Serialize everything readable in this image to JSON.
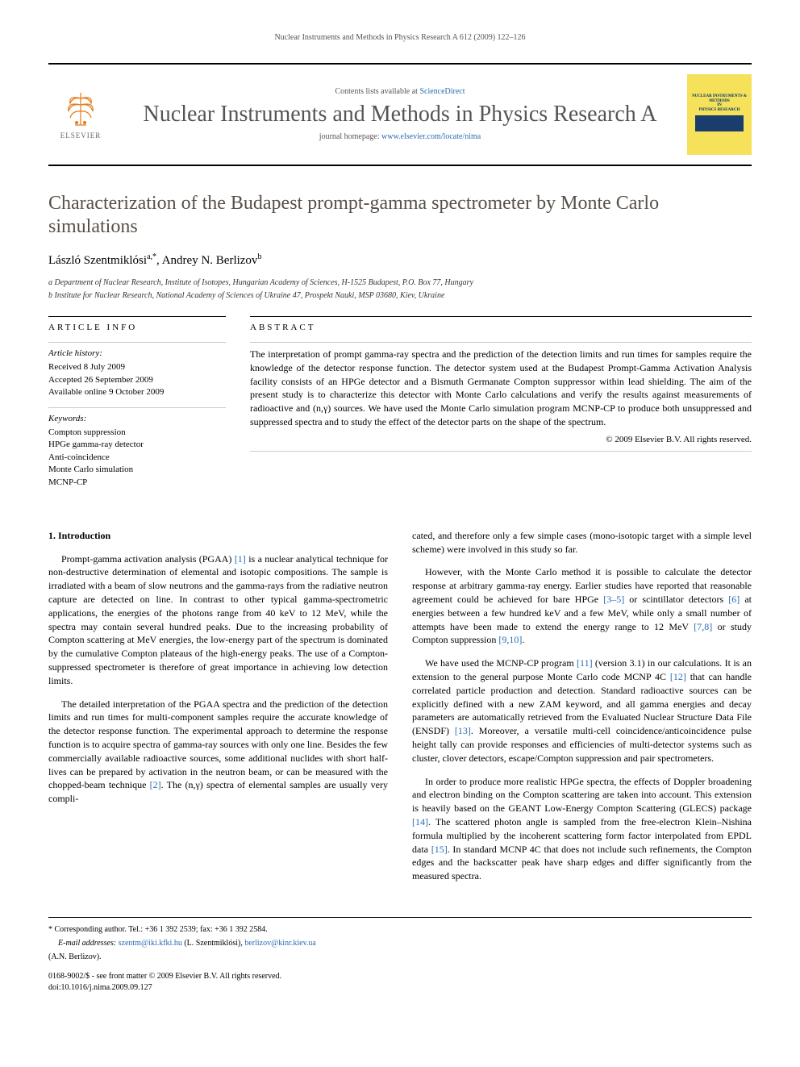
{
  "running_head": "Nuclear Instruments and Methods in Physics Research A 612 (2009) 122–126",
  "masthead": {
    "elsevier_label": "ELSEVIER",
    "contents_line_prefix": "Contents lists available at ",
    "contents_line_link": "ScienceDirect",
    "journal_name": "Nuclear Instruments and Methods in Physics Research A",
    "homepage_prefix": "journal homepage: ",
    "homepage_link": "www.elsevier.com/locate/nima",
    "cover_text1": "NUCLEAR INSTRUMENTS & METHODS",
    "cover_text2": "IN",
    "cover_text3": "PHYSICS RESEARCH"
  },
  "article": {
    "title": "Characterization of the Budapest prompt-gamma spectrometer by Monte Carlo simulations",
    "authors_html": "László Szentmiklósi",
    "author1_sup": "a,*",
    "author_sep": ", ",
    "author2": "Andrey N. Berlizov",
    "author2_sup": "b",
    "affil_a": "a Department of Nuclear Research, Institute of Isotopes, Hungarian Academy of Sciences, H-1525 Budapest, P.O. Box 77, Hungary",
    "affil_b": "b Institute for Nuclear Research, National Academy of Sciences of Ukraine 47, Prospekt Nauki, MSP 03680, Kiev, Ukraine"
  },
  "info": {
    "header": "ARTICLE INFO",
    "history_title": "Article history:",
    "received": "Received 8 July 2009",
    "accepted": "Accepted 26 September 2009",
    "online": "Available online 9 October 2009",
    "keywords_title": "Keywords:",
    "kw1": "Compton suppression",
    "kw2": "HPGe gamma-ray detector",
    "kw3": "Anti-coincidence",
    "kw4": "Monte Carlo simulation",
    "kw5": "MCNP-CP"
  },
  "abstract": {
    "header": "ABSTRACT",
    "text": "The interpretation of prompt gamma-ray spectra and the prediction of the detection limits and run times for samples require the knowledge of the detector response function. The detector system used at the Budapest Prompt-Gamma Activation Analysis facility consists of an HPGe detector and a Bismuth Germanate Compton suppressor within lead shielding. The aim of the present study is to characterize this detector with Monte Carlo calculations and verify the results against measurements of radioactive and (n,γ) sources. We have used the Monte Carlo simulation program MCNP-CP to produce both unsuppressed and suppressed spectra and to study the effect of the detector parts on the shape of the spectrum.",
    "copyright": "© 2009 Elsevier B.V. All rights reserved."
  },
  "body": {
    "section1_heading": "1. Introduction",
    "col1_p1": "Prompt-gamma activation analysis (PGAA) [1] is a nuclear analytical technique for non-destructive determination of elemental and isotopic compositions. The sample is irradiated with a beam of slow neutrons and the gamma-rays from the radiative neutron capture are detected on line. In contrast to other typical gamma-spectrometric applications, the energies of the photons range from 40 keV to 12 MeV, while the spectra may contain several hundred peaks. Due to the increasing probability of Compton scattering at MeV energies, the low-energy part of the spectrum is dominated by the cumulative Compton plateaus of the high-energy peaks. The use of a Compton-suppressed spectrometer is therefore of great importance in achieving low detection limits.",
    "col1_p2": "The detailed interpretation of the PGAA spectra and the prediction of the detection limits and run times for multi-component samples require the accurate knowledge of the detector response function. The experimental approach to determine the response function is to acquire spectra of gamma-ray sources with only one line. Besides the few commercially available radioactive sources, some additional nuclides with short half-lives can be prepared by activation in the neutron beam, or can be measured with the chopped-beam technique [2]. The (n,γ) spectra of elemental samples are usually very compli-",
    "col2_p1": "cated, and therefore only a few simple cases (mono-isotopic target with a simple level scheme) were involved in this study so far.",
    "col2_p2": "However, with the Monte Carlo method it is possible to calculate the detector response at arbitrary gamma-ray energy. Earlier studies have reported that reasonable agreement could be achieved for bare HPGe [3–5] or scintillator detectors [6] at energies between a few hundred keV and a few MeV, while only a small number of attempts have been made to extend the energy range to 12 MeV [7,8] or study Compton suppression [9,10].",
    "col2_p3": "We have used the MCNP-CP program [11] (version 3.1) in our calculations. It is an extension to the general purpose Monte Carlo code MCNP 4C [12] that can handle correlated particle production and detection. Standard radioactive sources can be explicitly defined with a new ZAM keyword, and all gamma energies and decay parameters are automatically retrieved from the Evaluated Nuclear Structure Data File (ENSDF) [13]. Moreover, a versatile multi-cell coincidence/anticoincidence pulse height tally can provide responses and efficiencies of multi-detector systems such as cluster, clover detectors, escape/Compton suppression and pair spectrometers.",
    "col2_p4": "In order to produce more realistic HPGe spectra, the effects of Doppler broadening and electron binding on the Compton scattering are taken into account. This extension is heavily based on the GEANT Low-Energy Compton Scattering (GLECS) package [14]. The scattered photon angle is sampled from the free-electron Klein–Nishina formula multiplied by the incoherent scattering form factor interpolated from EPDL data [15]. In standard MCNP 4C that does not include such refinements, the Compton edges and the backscatter peak have sharp edges and differ significantly from the measured spectra."
  },
  "footer": {
    "corr_line": "* Corresponding author. Tel.: +36 1 392 2539; fax: +36 1 392 2584.",
    "email_prefix": "E-mail addresses: ",
    "email1": "szentm@iki.kfki.hu",
    "email1_who": " (L. Szentmiklósi), ",
    "email2": "berlizov@kinr.kiev.ua",
    "email2_who": "(A.N. Berlizov).",
    "issn_line": "0168-9002/$ - see front matter © 2009 Elsevier B.V. All rights reserved.",
    "doi_line": "doi:10.1016/j.nima.2009.09.127"
  },
  "colors": {
    "link": "#2a6ab3",
    "title_gray": "#585048",
    "journal_gray": "#555555",
    "cover_yellow": "#f5e15a",
    "cover_blue": "#1a3d6d",
    "elsevier_orange": "#e67817"
  }
}
